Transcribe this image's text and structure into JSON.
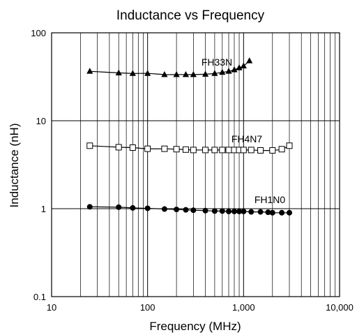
{
  "chart_data": {
    "type": "scatter",
    "title": "Inductance vs Frequency",
    "xlabel": "Frequency (MHz)",
    "ylabel": "Inductance (nH)",
    "x_scale": "log",
    "y_scale": "log",
    "xlim": [
      10,
      10000
    ],
    "ylim": [
      0.1,
      100
    ],
    "x_ticks": [
      10,
      100,
      1000,
      10000
    ],
    "x_tick_labels": [
      "10",
      "100",
      "1,000",
      "10,000"
    ],
    "y_ticks": [
      0.1,
      1,
      10,
      100
    ],
    "y_tick_labels": [
      "0.1",
      "1",
      "10",
      "100"
    ],
    "grid": true,
    "series": [
      {
        "name": "FH33N",
        "marker": "triangle-filled",
        "x": [
          25,
          50,
          70,
          100,
          150,
          200,
          250,
          300,
          400,
          500,
          600,
          700,
          800,
          900,
          1000,
          1150
        ],
        "y": [
          36.5,
          35,
          34.5,
          34.5,
          33.5,
          33.5,
          33.5,
          33.5,
          33.8,
          34.5,
          35.5,
          36.5,
          38,
          40,
          42,
          48
        ]
      },
      {
        "name": "FH4N7",
        "marker": "square-open",
        "x": [
          25,
          50,
          70,
          100,
          150,
          200,
          250,
          300,
          400,
          500,
          600,
          700,
          800,
          900,
          1000,
          1200,
          1500,
          2000,
          2500,
          3000
        ],
        "y": [
          5.2,
          5.0,
          4.95,
          4.8,
          4.8,
          4.75,
          4.7,
          4.65,
          4.65,
          4.65,
          4.65,
          4.65,
          4.65,
          4.65,
          4.65,
          4.65,
          4.6,
          4.6,
          4.75,
          5.2
        ]
      },
      {
        "name": "FH1N0",
        "marker": "circle-filled",
        "x": [
          25,
          50,
          70,
          100,
          150,
          200,
          250,
          300,
          400,
          500,
          600,
          700,
          800,
          900,
          1000,
          1200,
          1500,
          1800,
          2000,
          2500,
          3000
        ],
        "y": [
          1.05,
          1.04,
          1.02,
          1.01,
          0.99,
          0.98,
          0.97,
          0.96,
          0.95,
          0.94,
          0.94,
          0.93,
          0.93,
          0.93,
          0.93,
          0.92,
          0.92,
          0.91,
          0.9,
          0.9,
          0.9
        ]
      }
    ]
  }
}
